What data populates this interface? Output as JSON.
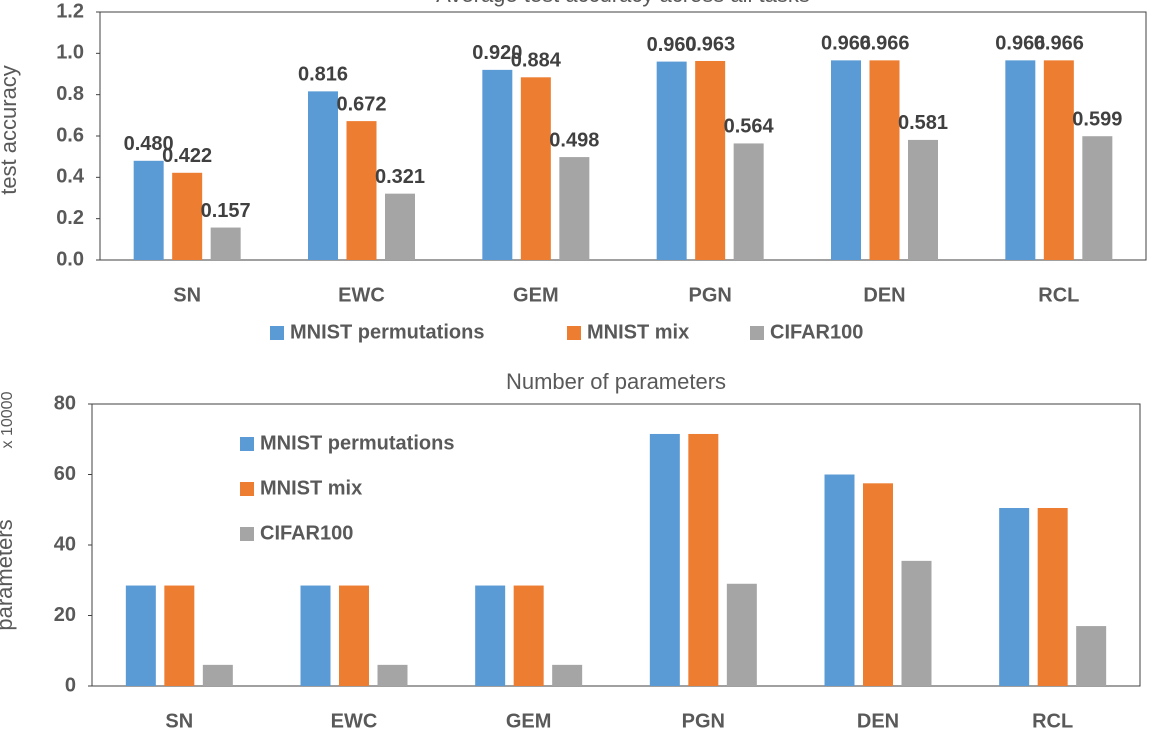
{
  "chart_data": [
    {
      "type": "bar",
      "title": "Average test accuracy across all tasks",
      "y_label": "test accuracy",
      "categories": [
        "SN",
        "EWC",
        "GEM",
        "PGN",
        "DEN",
        "RCL"
      ],
      "series": [
        {
          "name": "MNIST permutations",
          "color": "#5b9bd5",
          "values": [
            0.48,
            0.816,
            0.92,
            0.96,
            0.966,
            0.966
          ],
          "value_labels": [
            "0.480",
            "0.816",
            "0.920",
            "0.960",
            "0.966",
            "0.966"
          ]
        },
        {
          "name": "MNIST mix",
          "color": "#ed7d31",
          "values": [
            0.422,
            0.672,
            0.884,
            0.963,
            0.966,
            0.966
          ],
          "value_labels": [
            "0.422",
            "0.672",
            "0.884",
            "0.963",
            "0.966",
            "0.966"
          ]
        },
        {
          "name": "CIFAR100",
          "color": "#a5a5a5",
          "values": [
            0.157,
            0.321,
            0.498,
            0.564,
            0.581,
            0.599
          ],
          "value_labels": [
            "0.157",
            "0.321",
            "0.498",
            "0.564",
            "0.581",
            "0.599"
          ]
        }
      ],
      "ylim": [
        0,
        1.2
      ],
      "yticks": [
        {
          "value": 0,
          "label": "0.0"
        },
        0.2,
        0.4,
        0.6,
        0.8,
        {
          "value": 1,
          "label": "1.0"
        },
        1.2
      ],
      "grid": false,
      "legend": "bottom"
    },
    {
      "type": "bar",
      "title": "Number of parameters",
      "y_label": "parameters",
      "y_multiplier": "x 10000",
      "categories": [
        "SN",
        "EWC",
        "GEM",
        "PGN",
        "DEN",
        "RCL"
      ],
      "series": [
        {
          "name": "MNIST permutations",
          "color": "#5b9bd5",
          "values": [
            28.5,
            28.5,
            28.5,
            71.5,
            60,
            50.5
          ]
        },
        {
          "name": "MNIST mix",
          "color": "#ed7d31",
          "values": [
            28.5,
            28.5,
            28.5,
            71.5,
            57.5,
            50.5
          ]
        },
        {
          "name": "CIFAR100",
          "color": "#a5a5a5",
          "values": [
            6,
            6,
            6,
            29,
            35.5,
            17
          ]
        }
      ],
      "ylim": [
        0,
        80
      ],
      "yticks": [
        0,
        20,
        40,
        60,
        80
      ],
      "grid": false,
      "legend": "upper left"
    }
  ]
}
